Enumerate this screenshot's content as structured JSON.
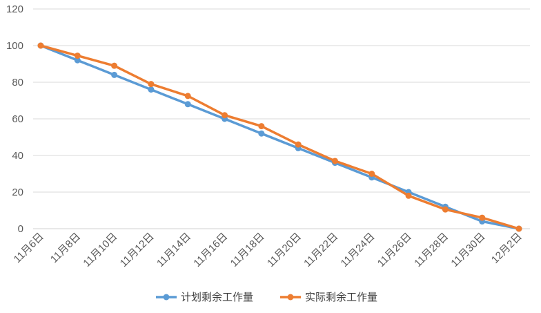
{
  "chart_data": {
    "type": "line",
    "title": "",
    "xlabel": "",
    "ylabel": "",
    "categories": [
      "11月6日",
      "11月8日",
      "11月10日",
      "11月12日",
      "11月14日",
      "11月16日",
      "11月18日",
      "11月20日",
      "11月22日",
      "11月24日",
      "11月26日",
      "11月28日",
      "11月30日",
      "12月2日"
    ],
    "ylim": [
      0,
      120
    ],
    "yticks": [
      0,
      20,
      40,
      60,
      80,
      100,
      120
    ],
    "grid": true,
    "legend_position": "bottom",
    "series": [
      {
        "name": "计划剩余工作量",
        "color": "#5B9BD5",
        "values": [
          100,
          92,
          84,
          76,
          68,
          60,
          52,
          44,
          36,
          28,
          20,
          12,
          4,
          0
        ]
      },
      {
        "name": "实际剩余工作量",
        "color": "#ED7D31",
        "values": [
          100,
          94.5,
          89,
          79,
          72.5,
          62,
          56,
          46,
          37,
          30,
          18,
          10.5,
          6,
          0
        ]
      }
    ]
  }
}
